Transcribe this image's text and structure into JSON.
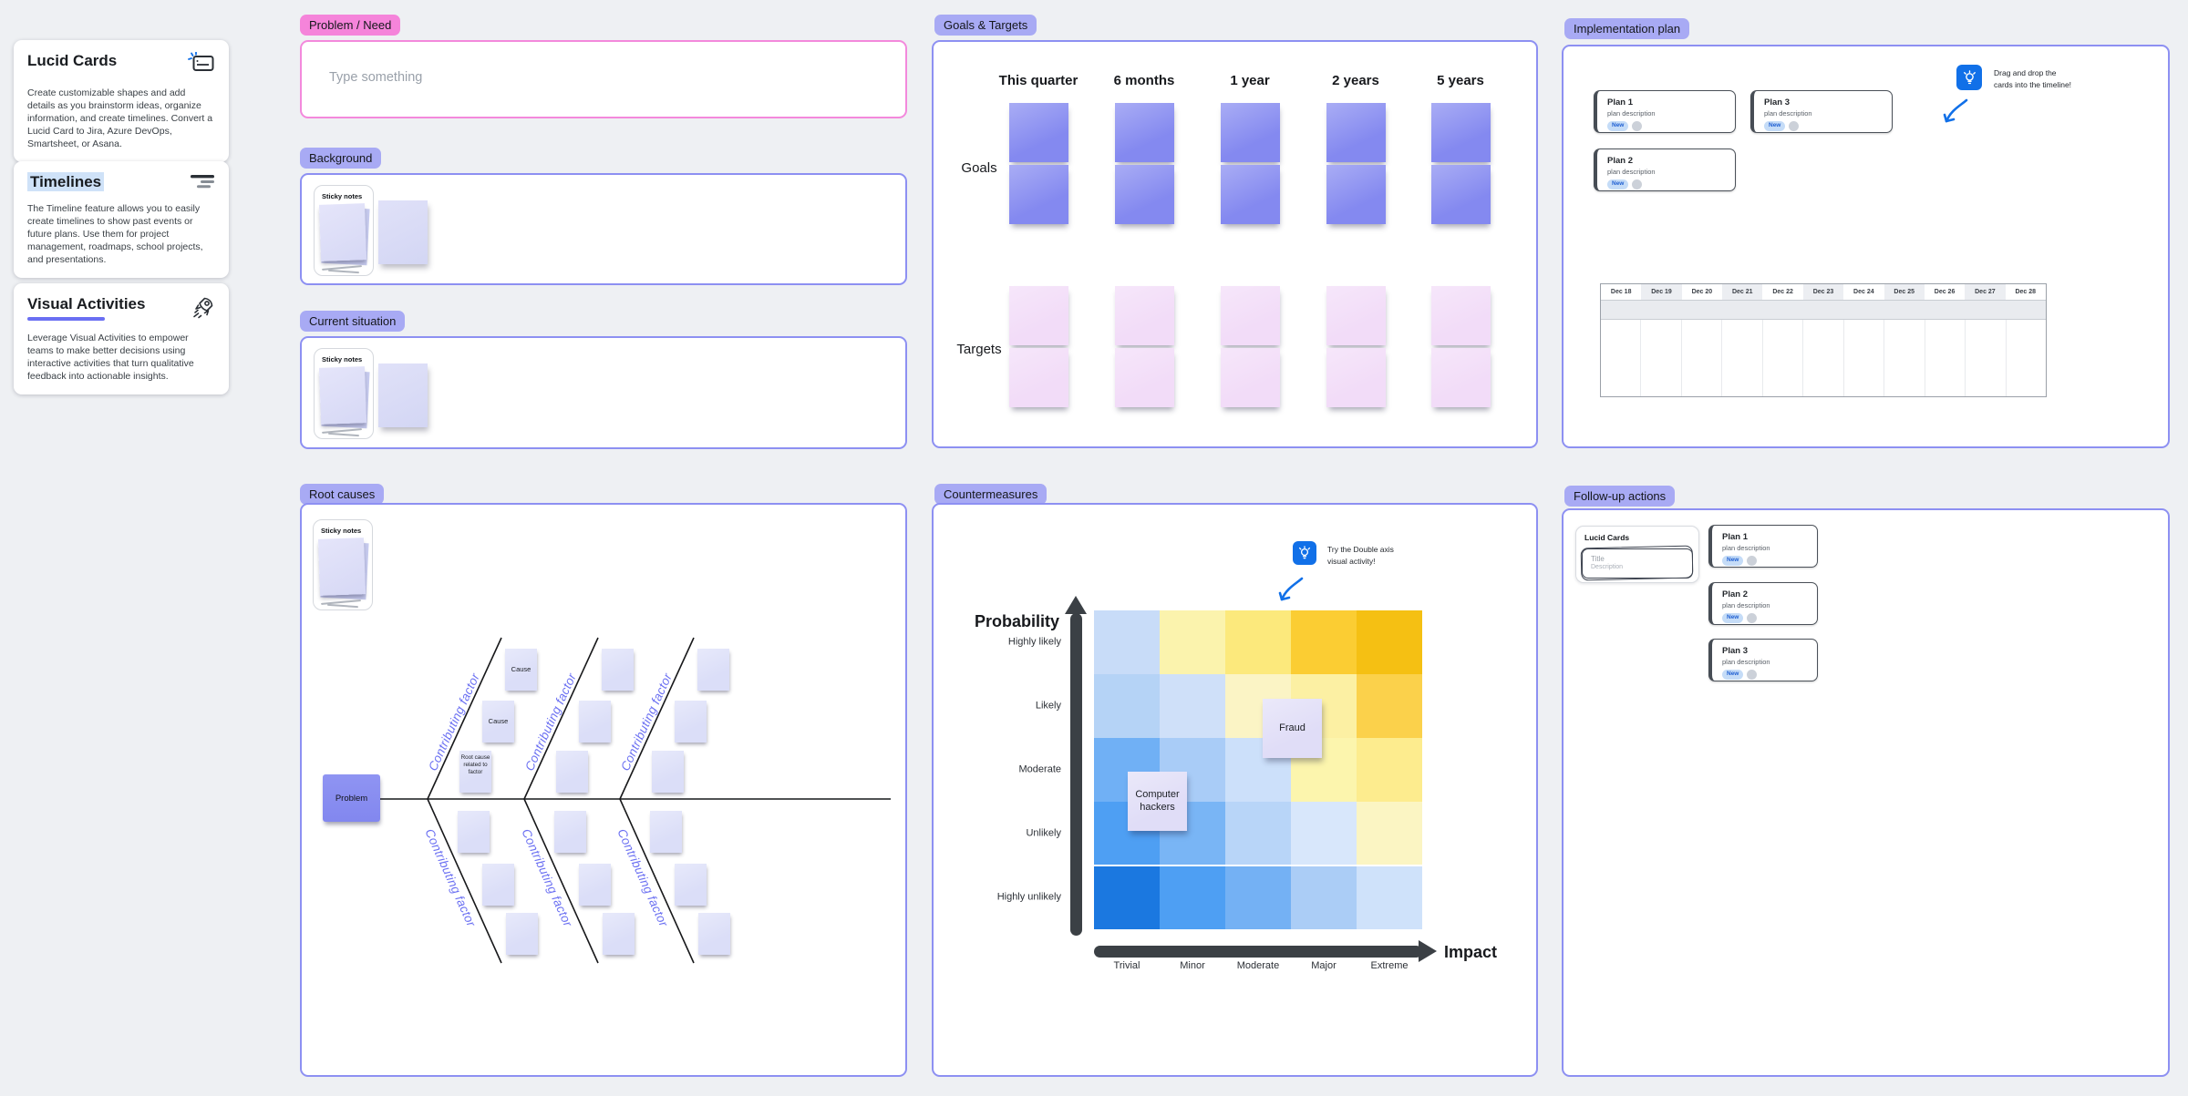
{
  "colors": {
    "canvas_bg": "#eef0f3",
    "accent_purple": "#8d90f2",
    "badge_purple": "#a8aaf4",
    "accent_pink": "#f389dc",
    "badge_pink": "#f584da",
    "sticky_lavender": "#dbdef8",
    "tip_blue": "#1170e8"
  },
  "sidebar": {
    "cards": [
      {
        "title": "Lucid Cards",
        "icon": "lucid-card-icon",
        "body": "Create customizable shapes and add details as you brainstorm ideas, organize information, and create timelines. Convert a Lucid Card to Jira, Azure DevOps, Smartsheet, or Asana."
      },
      {
        "title": "Timelines",
        "icon": "timeline-icon",
        "body": "The Timeline feature allows you to easily create timelines to show past events or future plans. Use them for project management, roadmaps, school projects, and presentations."
      },
      {
        "title": "Visual Activities",
        "icon": "rocket-icon",
        "body": "Leverage Visual Activities to empower teams to make better decisions using interactive activities that turn qualitative feedback into actionable insights."
      }
    ]
  },
  "problem_need": {
    "badge": "Problem / Need",
    "placeholder": "Type something"
  },
  "background": {
    "badge": "Background",
    "sticky_stack_label": "Sticky notes"
  },
  "current_situation": {
    "badge": "Current situation",
    "sticky_stack_label": "Sticky notes"
  },
  "goals_targets": {
    "badge": "Goals & Targets",
    "columns": [
      "This quarter",
      "6 months",
      "1 year",
      "2 years",
      "5 years"
    ],
    "row_labels": [
      "Goals",
      "Targets"
    ],
    "goals_note_color": "#8489f0",
    "targets_note_color": "#f2dcf8"
  },
  "implementation_plan": {
    "badge": "Implementation plan",
    "cards": [
      {
        "title": "Plan 1",
        "description": "plan description",
        "tag": "New"
      },
      {
        "title": "Plan 3",
        "description": "plan description",
        "tag": "New"
      },
      {
        "title": "Plan 2",
        "description": "plan description",
        "tag": "New"
      }
    ],
    "tip": {
      "line1": "Drag and drop the",
      "line2": "cards into the timeline!"
    },
    "timeline_dates": [
      "Dec 18",
      "Dec 19",
      "Dec 20",
      "Dec 21",
      "Dec 22",
      "Dec 23",
      "Dec 24",
      "Dec 25",
      "Dec 26",
      "Dec 27",
      "Dec 28"
    ]
  },
  "root_causes": {
    "badge": "Root causes",
    "sticky_stack_label": "Sticky notes",
    "problem_label": "Problem",
    "bone_label": "Contributing factor",
    "cause_notes": [
      "Cause",
      "Cause",
      "Root cause related to factor"
    ]
  },
  "countermeasures": {
    "badge": "Countermeasures",
    "tip": {
      "line1": "Try the Double axis",
      "line2": "visual activity!"
    },
    "chart": {
      "type": "heatmap",
      "x_axis": {
        "label": "Impact",
        "categories": [
          "Trivial",
          "Minor",
          "Moderate",
          "Major",
          "Extreme"
        ]
      },
      "y_axis": {
        "label": "Probability",
        "categories_top_to_bottom": [
          "Highly likely",
          "Likely",
          "Moderate",
          "Unlikely",
          "Highly unlikely"
        ]
      },
      "cells": [
        [
          "#c8dcf8",
          "#fbf3ad",
          "#fce97c",
          "#fbcd33",
          "#f5c013"
        ],
        [
          "#b5d3f6",
          "#cfe0f9",
          "#fbf4c5",
          "#fcf0a3",
          "#fbd14b"
        ],
        [
          "#70b0f5",
          "#a9ccf7",
          "#cce0fa",
          "#fcf5ad",
          "#fdec8e"
        ],
        [
          "#4e9ff3",
          "#79b5f5",
          "#b8d5f8",
          "#d8e7fb",
          "#fbf5c3"
        ],
        [
          "#1b78e0",
          "#4e9ff3",
          "#74b1f4",
          "#abcdf6",
          "#cfe2fa"
        ]
      ],
      "notes": [
        {
          "text": "Fraud",
          "probability": "Likely",
          "impact": "Moderate-Major"
        },
        {
          "text": "Computer hackers",
          "probability": "Moderate-Unlikely",
          "impact": "Trivial-Minor"
        }
      ]
    }
  },
  "follow_up": {
    "badge": "Follow-up actions",
    "lucid_card": {
      "label": "Lucid Cards",
      "title_placeholder": "Title",
      "description_placeholder": "Description"
    },
    "cards": [
      {
        "title": "Plan 1",
        "description": "plan description",
        "tag": "New"
      },
      {
        "title": "Plan 2",
        "description": "plan description",
        "tag": "New"
      },
      {
        "title": "Plan 3",
        "description": "plan description",
        "tag": "New"
      }
    ]
  }
}
